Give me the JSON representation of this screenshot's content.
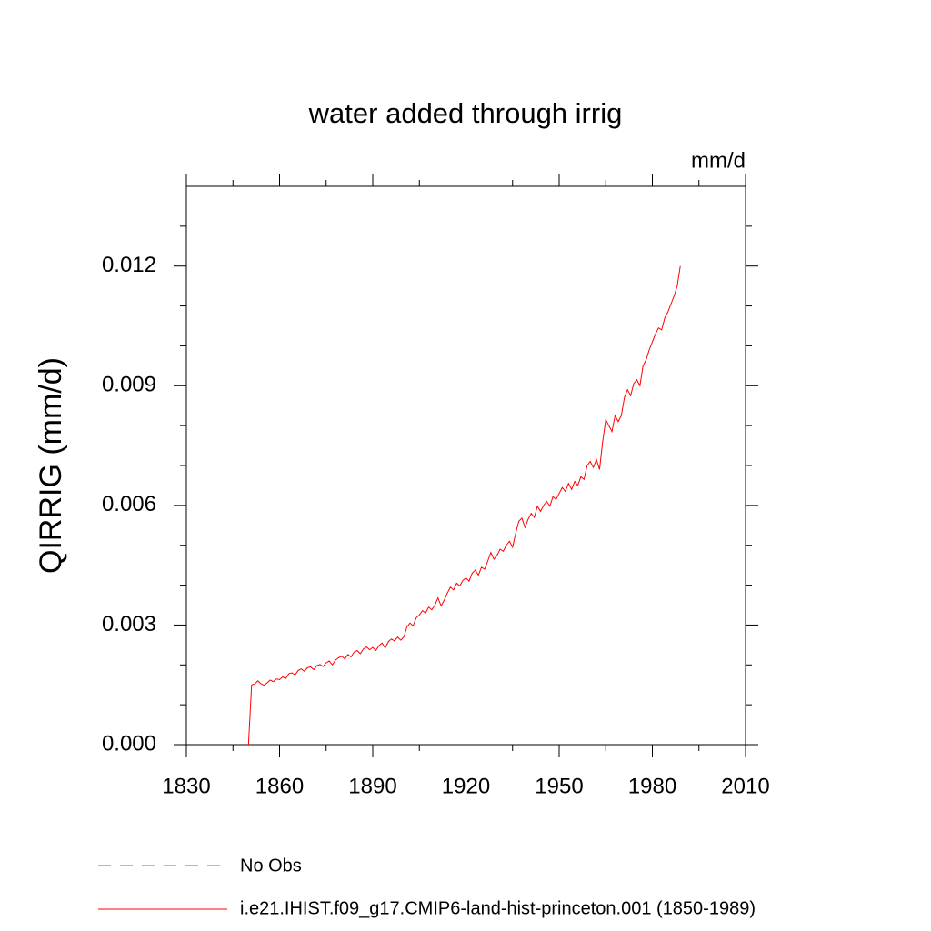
{
  "chart_data": {
    "type": "line",
    "title": "water added through irrig",
    "units": "mm/d",
    "y_label": "QIRRIG  (mm/d)",
    "x": [
      1850,
      1851,
      1852,
      1853,
      1854,
      1855,
      1856,
      1857,
      1858,
      1859,
      1860,
      1861,
      1862,
      1863,
      1864,
      1865,
      1866,
      1867,
      1868,
      1869,
      1870,
      1871,
      1872,
      1873,
      1874,
      1875,
      1876,
      1877,
      1878,
      1879,
      1880,
      1881,
      1882,
      1883,
      1884,
      1885,
      1886,
      1887,
      1888,
      1889,
      1890,
      1891,
      1892,
      1893,
      1894,
      1895,
      1896,
      1897,
      1898,
      1899,
      1900,
      1901,
      1902,
      1903,
      1904,
      1905,
      1906,
      1907,
      1908,
      1909,
      1910,
      1911,
      1912,
      1913,
      1914,
      1915,
      1916,
      1917,
      1918,
      1919,
      1920,
      1921,
      1922,
      1923,
      1924,
      1925,
      1926,
      1927,
      1928,
      1929,
      1930,
      1931,
      1932,
      1933,
      1934,
      1935,
      1936,
      1937,
      1938,
      1939,
      1940,
      1941,
      1942,
      1943,
      1944,
      1945,
      1946,
      1947,
      1948,
      1949,
      1950,
      1951,
      1952,
      1953,
      1954,
      1955,
      1956,
      1957,
      1958,
      1959,
      1960,
      1961,
      1962,
      1963,
      1964,
      1965,
      1966,
      1967,
      1968,
      1969,
      1970,
      1971,
      1972,
      1973,
      1974,
      1975,
      1976,
      1977,
      1978,
      1979,
      1980,
      1981,
      1982,
      1983,
      1984,
      1985,
      1986,
      1987,
      1988,
      1989
    ],
    "series": [
      {
        "name": "i.e21.IHIST.f09_g17.CMIP6-land-hist-princeton.001 (1850-1989)",
        "color": "#ff0000",
        "values": [
          0,
          0.0015,
          0.00152,
          0.0016,
          0.00153,
          0.00149,
          0.00155,
          0.00162,
          0.00158,
          0.00165,
          0.00163,
          0.0017,
          0.00166,
          0.00178,
          0.0018,
          0.00175,
          0.00186,
          0.0019,
          0.00184,
          0.00193,
          0.00195,
          0.00188,
          0.00198,
          0.00201,
          0.00196,
          0.00205,
          0.0021,
          0.002,
          0.00212,
          0.00218,
          0.00222,
          0.00215,
          0.00226,
          0.0022,
          0.00232,
          0.00236,
          0.00228,
          0.0024,
          0.00245,
          0.00238,
          0.00244,
          0.00236,
          0.00248,
          0.00255,
          0.00242,
          0.00258,
          0.00265,
          0.0026,
          0.0027,
          0.00262,
          0.0027,
          0.00295,
          0.00305,
          0.00298,
          0.00318,
          0.00325,
          0.00336,
          0.0033,
          0.00345,
          0.00338,
          0.0035,
          0.00368,
          0.00348,
          0.00362,
          0.0038,
          0.00395,
          0.00388,
          0.00405,
          0.00398,
          0.00412,
          0.00418,
          0.0041,
          0.0043,
          0.00438,
          0.00425,
          0.00445,
          0.0044,
          0.0046,
          0.00482,
          0.00465,
          0.00475,
          0.0049,
          0.00485,
          0.005,
          0.0051,
          0.00495,
          0.0053,
          0.0056,
          0.00568,
          0.00545,
          0.00565,
          0.0058,
          0.0057,
          0.00598,
          0.00585,
          0.006,
          0.0061,
          0.00598,
          0.00622,
          0.00615,
          0.0063,
          0.00645,
          0.00635,
          0.00655,
          0.0064,
          0.0066,
          0.0065,
          0.00672,
          0.00665,
          0.007,
          0.0071,
          0.00695,
          0.00715,
          0.0069,
          0.0076,
          0.00815,
          0.008,
          0.00785,
          0.00825,
          0.0081,
          0.00825,
          0.0087,
          0.0089,
          0.00875,
          0.00905,
          0.00915,
          0.009,
          0.0095,
          0.00965,
          0.0099,
          0.0101,
          0.0103,
          0.01045,
          0.0104,
          0.0107,
          0.01085,
          0.01105,
          0.01125,
          0.0115,
          0.012
        ]
      }
    ],
    "obs_legend": {
      "name": "No Obs",
      "color": "#7060c0"
    },
    "xlim": [
      1830,
      2010
    ],
    "xticks": [
      1830,
      1860,
      1890,
      1920,
      1950,
      1980,
      2010
    ],
    "xminorticks": [
      1845,
      1875,
      1905,
      1935,
      1965,
      1995
    ],
    "ylim": [
      0,
      0.014
    ],
    "yticks": [
      {
        "value": 0,
        "label": "0.000"
      },
      0.003,
      0.006,
      0.009,
      0.012
    ],
    "yminorticks": [
      0.001,
      0.002,
      0.004,
      0.005,
      0.007,
      0.008,
      0.01,
      0.011,
      0.013
    ]
  }
}
